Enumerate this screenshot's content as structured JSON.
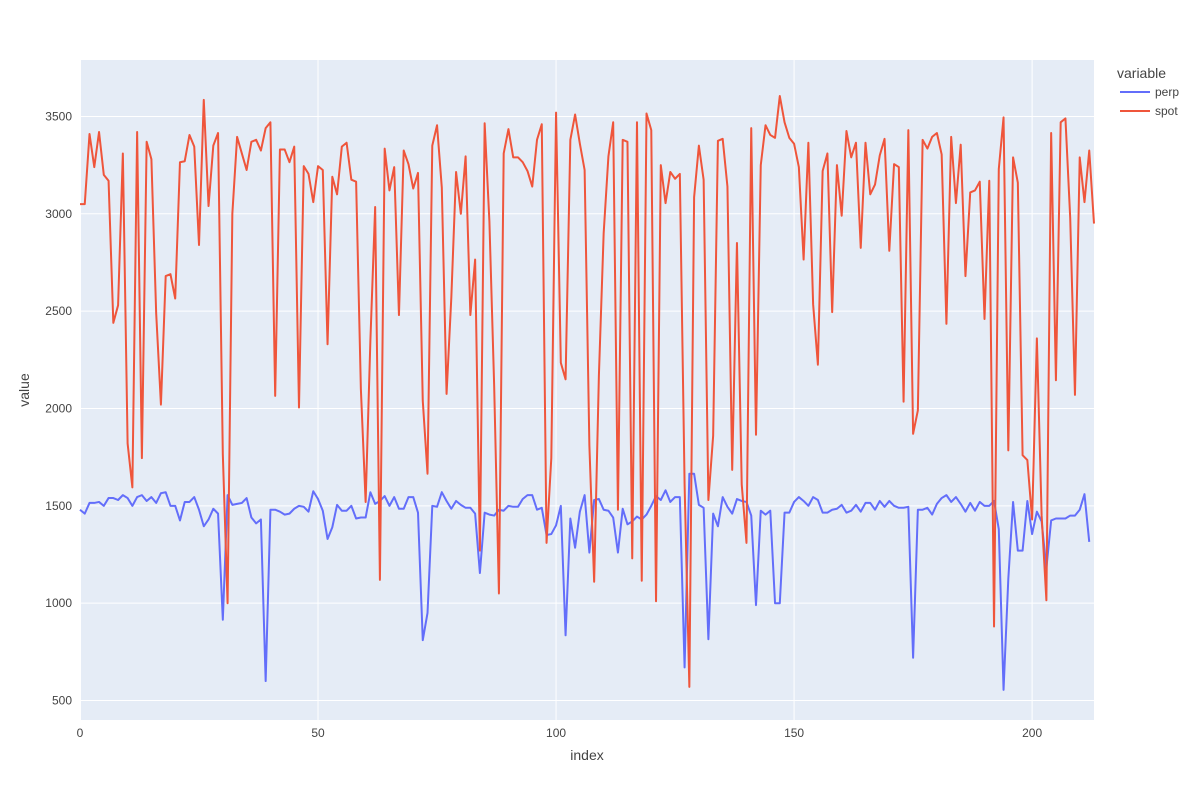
{
  "chart_data": {
    "type": "line",
    "xlabel": "index",
    "ylabel": "value",
    "xlim": [
      0,
      213
    ],
    "ylim": [
      400,
      3790
    ],
    "x_ticks": [
      0,
      50,
      100,
      150,
      200
    ],
    "y_ticks": [
      500,
      1000,
      1500,
      2000,
      2500,
      3000,
      3500
    ],
    "grid": true,
    "legend": {
      "title": "variable",
      "position": "top-right"
    },
    "series": [
      {
        "name": "perp",
        "color": "#636efa",
        "values": [
          1480,
          1460,
          1515,
          1515,
          1520,
          1500,
          1540,
          1540,
          1530,
          1555,
          1540,
          1500,
          1545,
          1555,
          1525,
          1545,
          1515,
          1565,
          1570,
          1500,
          1500,
          1425,
          1520,
          1520,
          1545,
          1480,
          1395,
          1430,
          1485,
          1460,
          915,
          1555,
          1505,
          1510,
          1515,
          1540,
          1440,
          1410,
          1430,
          600,
          1480,
          1480,
          1470,
          1455,
          1460,
          1485,
          1500,
          1495,
          1470,
          1575,
          1535,
          1475,
          1330,
          1390,
          1505,
          1475,
          1475,
          1500,
          1435,
          1440,
          1440,
          1570,
          1510,
          1525,
          1550,
          1500,
          1545,
          1485,
          1485,
          1545,
          1545,
          1465,
          810,
          950,
          1500,
          1495,
          1570,
          1525,
          1485,
          1525,
          1505,
          1490,
          1490,
          1460,
          1155,
          1465,
          1455,
          1450,
          1480,
          1475,
          1500,
          1495,
          1495,
          1535,
          1555,
          1555,
          1480,
          1490,
          1350,
          1355,
          1400,
          1500,
          835,
          1435,
          1285,
          1470,
          1555,
          1260,
          1530,
          1535,
          1480,
          1475,
          1440,
          1260,
          1485,
          1405,
          1420,
          1445,
          1430,
          1455,
          1500,
          1550,
          1530,
          1580,
          1520,
          1545,
          1545,
          670,
          1665,
          1665,
          1505,
          1490,
          815,
          1460,
          1395,
          1545,
          1495,
          1460,
          1535,
          1525,
          1520,
          1450,
          990,
          1475,
          1455,
          1475,
          1000,
          1000,
          1465,
          1465,
          1520,
          1545,
          1525,
          1500,
          1545,
          1530,
          1465,
          1465,
          1480,
          1485,
          1505,
          1465,
          1475,
          1505,
          1470,
          1515,
          1515,
          1480,
          1525,
          1495,
          1525,
          1500,
          1490,
          1490,
          1495,
          720,
          1480,
          1480,
          1490,
          1455,
          1510,
          1540,
          1555,
          1520,
          1545,
          1510,
          1470,
          1515,
          1475,
          1520,
          1500,
          1500,
          1525,
          1380,
          555,
          1125,
          1520,
          1270,
          1270,
          1525,
          1355,
          1470,
          1420,
          1180,
          1425,
          1435,
          1435,
          1435,
          1450,
          1450,
          1480,
          1560,
          1315
        ]
      },
      {
        "name": "spot",
        "color": "#ef553b",
        "values": [
          3050,
          3050,
          3410,
          3240,
          3420,
          3200,
          3170,
          2440,
          2530,
          3310,
          1820,
          1595,
          3420,
          1745,
          3370,
          3280,
          2490,
          2020,
          2680,
          2690,
          2565,
          3265,
          3270,
          3405,
          3345,
          2840,
          3585,
          3040,
          3350,
          3415,
          1765,
          1000,
          3000,
          3395,
          3310,
          3225,
          3370,
          3380,
          3325,
          3440,
          3470,
          2065,
          3330,
          3330,
          3265,
          3345,
          2005,
          3245,
          3205,
          3060,
          3245,
          3225,
          2330,
          3190,
          3100,
          3345,
          3365,
          3175,
          3165,
          2100,
          1520,
          2350,
          3035,
          1120,
          3335,
          3120,
          3240,
          2480,
          3325,
          3255,
          3130,
          3210,
          2040,
          1665,
          3350,
          3455,
          3135,
          2075,
          2570,
          3215,
          3000,
          3295,
          2480,
          2765,
          1270,
          3465,
          2960,
          2115,
          1050,
          3310,
          3435,
          3290,
          3290,
          3265,
          3220,
          3140,
          3380,
          3460,
          1310,
          1745,
          3520,
          2235,
          2150,
          3380,
          3510,
          3360,
          3225,
          1810,
          1110,
          2170,
          2900,
          3295,
          3470,
          1480,
          3380,
          3370,
          1230,
          3470,
          1115,
          3515,
          3430,
          1010,
          3250,
          3055,
          3215,
          3180,
          3205,
          1610,
          570,
          3085,
          3350,
          3175,
          1530,
          1860,
          3375,
          3385,
          3140,
          1685,
          2850,
          1610,
          1310,
          3440,
          1865,
          3250,
          3455,
          3405,
          3390,
          3605,
          3470,
          3390,
          3360,
          3240,
          2765,
          3365,
          2535,
          2225,
          3220,
          3310,
          2495,
          3250,
          2990,
          3425,
          3290,
          3365,
          2825,
          3365,
          3100,
          3150,
          3300,
          3385,
          2810,
          3255,
          3240,
          2035,
          3430,
          1870,
          1990,
          3380,
          3335,
          3395,
          3415,
          3305,
          2435,
          3395,
          3055,
          3355,
          2680,
          3110,
          3120,
          3165,
          2460,
          3170,
          880,
          3230,
          3495,
          1785,
          3290,
          3160,
          1760,
          1735,
          1430,
          2360,
          1450,
          1015,
          3415,
          2145,
          3470,
          3490,
          2980,
          2070,
          3290,
          3060,
          3325,
          2950
        ]
      }
    ]
  }
}
